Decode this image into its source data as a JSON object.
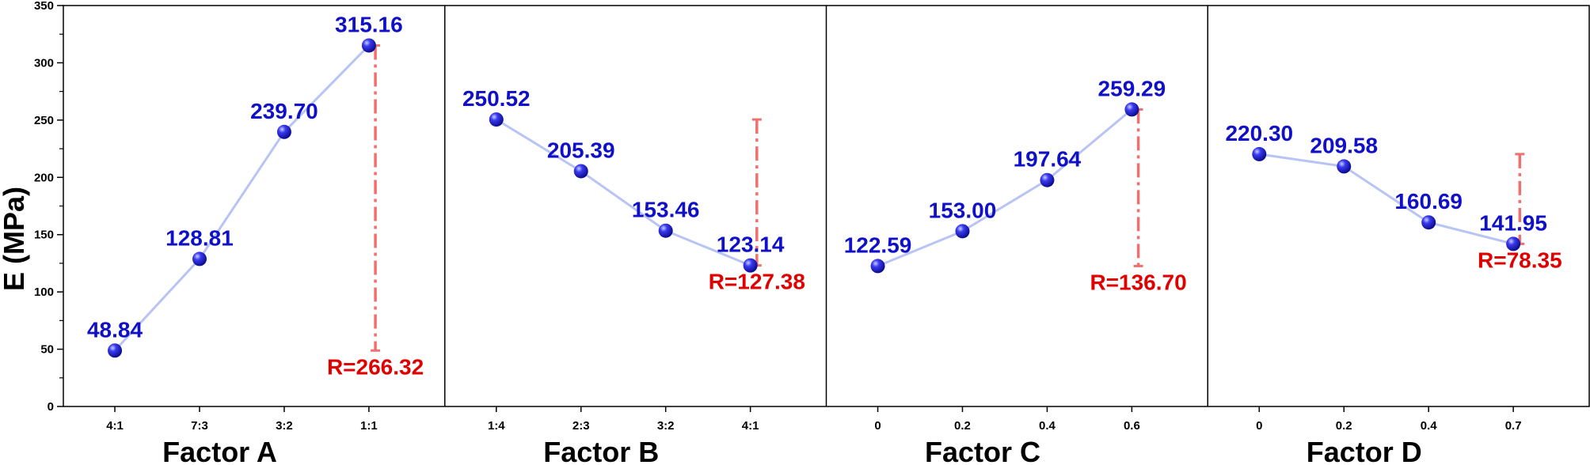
{
  "chart_data": {
    "type": "line",
    "ylabel": "E (MPa)",
    "ylim": [
      0,
      350
    ],
    "yticks": [
      0,
      50,
      100,
      150,
      200,
      250,
      300,
      350
    ],
    "grid": false,
    "colors": {
      "line": "#b8c4f4",
      "marker": "#1010c8",
      "value_label": "#1010c8",
      "range": "#f07070",
      "range_label": "#e00000"
    },
    "panels": [
      {
        "xlabel": "Factor A",
        "categories": [
          "4:1",
          "7:3",
          "3:2",
          "1:1"
        ],
        "values": [
          48.84,
          128.81,
          239.7,
          315.16
        ],
        "value_labels": [
          "48.84",
          "128.81",
          "239.70",
          "315.16"
        ],
        "range_label": "R=266.32"
      },
      {
        "xlabel": "Factor B",
        "categories": [
          "1:4",
          "2:3",
          "3:2",
          "4:1"
        ],
        "values": [
          250.52,
          205.39,
          153.46,
          123.14
        ],
        "value_labels": [
          "250.52",
          "205.39",
          "153.46",
          "123.14"
        ],
        "range_label": "R=127.38"
      },
      {
        "xlabel": "Factor C",
        "categories": [
          "0",
          "0.2",
          "0.4",
          "0.6"
        ],
        "values": [
          122.59,
          153.0,
          197.64,
          259.29
        ],
        "value_labels": [
          "122.59",
          "153.00",
          "197.64",
          "259.29"
        ],
        "range_label": "R=136.70"
      },
      {
        "xlabel": "Factor D",
        "categories": [
          "0",
          "0.2",
          "0.4",
          "0.7"
        ],
        "values": [
          220.3,
          209.58,
          160.69,
          141.95
        ],
        "value_labels": [
          "220.30",
          "209.58",
          "160.69",
          "141.95"
        ],
        "range_label": "R=78.35"
      }
    ]
  }
}
